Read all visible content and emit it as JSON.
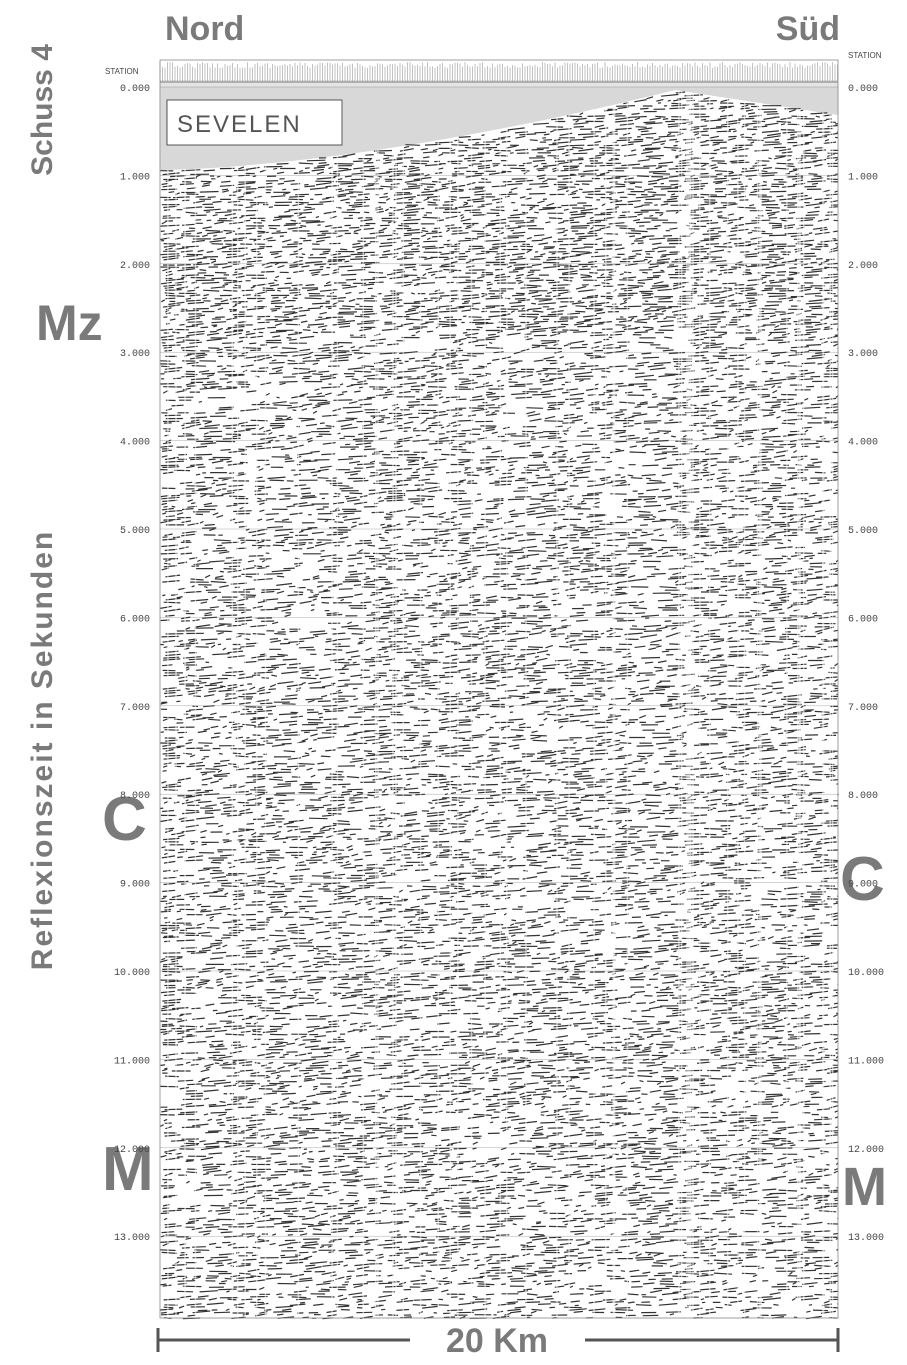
{
  "header": {
    "left": "Nord",
    "right": "Süd"
  },
  "side_titles": {
    "shot": "Schuss 4",
    "axis": "Reflexionszeit in Sekunden"
  },
  "section": {
    "station_left": "STATION",
    "station_right": "STATION",
    "location": "SEVELEN"
  },
  "left_axis": {
    "labels": [
      "0.000",
      "1.000",
      "2.000",
      "3.000",
      "4.000",
      "5.000",
      "6.000",
      "7.000",
      "8.000",
      "9.000",
      "10.000",
      "11.000",
      "12.000",
      "13.000"
    ]
  },
  "right_axis": {
    "labels": [
      "0.000",
      "1.000",
      "2.000",
      "3.000",
      "4.000",
      "5.000",
      "6.000",
      "7.000",
      "8.000",
      "9.000",
      "10.000",
      "11.000",
      "12.000",
      "13.000"
    ]
  },
  "markers": {
    "mz": "Mz",
    "c_left": "C",
    "c_right": "C",
    "m_left": "M",
    "m_right": "M"
  },
  "scale": {
    "label": "20 Km"
  }
}
